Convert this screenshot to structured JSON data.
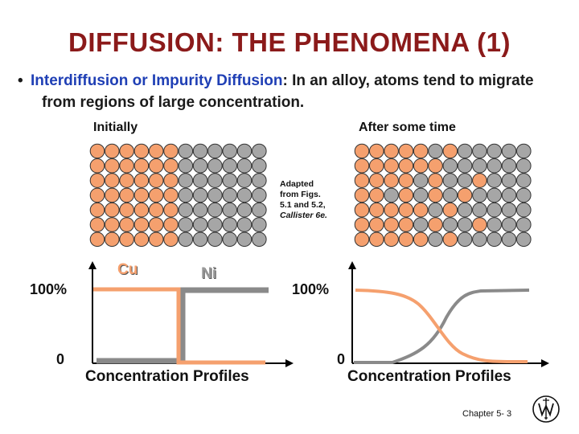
{
  "slide": {
    "title": "DIFFUSION:  THE PHENOMENA (1)",
    "bullet": {
      "symbol": "•",
      "term": "Interdiffusion or Impurity Diffusion",
      "text_line1": ":  In an alloy, atoms tend to migrate",
      "text_line2": "from regions of large concentration."
    },
    "left_panel": {
      "label": "Initially",
      "grid": [
        "CCCCCCNNNNNN",
        "CCCCCCNNNNNN",
        "CCCCCCNNNNNN",
        "CCCCCCNNNNNN",
        "CCCCCCNNNNNN",
        "CCCCCCNNNNNN",
        "CCCCCCNNNNNN"
      ]
    },
    "right_panel": {
      "label": "After some time",
      "grid": [
        "CCCCCNCNNNNN",
        "CCCCCCNNNNNN",
        "CCCCNCNNCNNN",
        "CCNCNCNCNNNN",
        "CCCCCNCNNNNN",
        "CCCCNCNNCNNN",
        "CCCCCNCNNNNN"
      ]
    },
    "caption": {
      "line1": "Adapted",
      "line2": "from Figs.",
      "line3": "5.1 and 5.2,",
      "line4": "Callister 6e."
    },
    "colors": {
      "copper": "#f5a06e",
      "nickel": "#a6a6a6",
      "title": "#8b1a1a",
      "term": "#1f3fb5",
      "cu_curve": "#f5a06e",
      "ni_curve": "#8a8a8a"
    },
    "left_profile": {
      "cu_label": "Cu",
      "ni_label": "Ni",
      "y_top_label": "100%",
      "y_bottom_label": "0",
      "x_label": "Concentration Profiles"
    },
    "right_profile": {
      "y_top_label": "100%",
      "y_bottom_label": "0",
      "x_label": "Concentration Profiles"
    },
    "footer": {
      "chapter": "Chapter 5- 3"
    },
    "logo_icon": "wiley-logo-icon"
  }
}
